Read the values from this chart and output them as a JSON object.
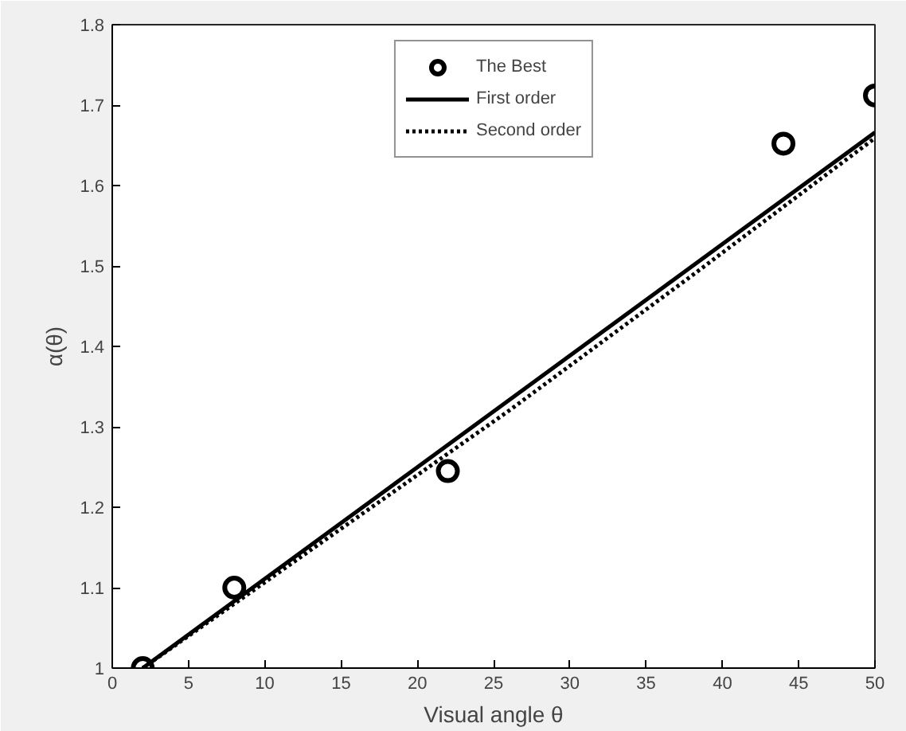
{
  "chart_data": {
    "type": "scatter",
    "xlabel": "Visual angle θ",
    "ylabel": "α(θ)",
    "xlim": [
      0,
      50
    ],
    "ylim": [
      1,
      1.8
    ],
    "xticks": [
      0,
      5,
      10,
      15,
      20,
      25,
      30,
      35,
      40,
      45,
      50
    ],
    "yticks": [
      1,
      1.1,
      1.2,
      1.3,
      1.4,
      1.5,
      1.6,
      1.7,
      1.8
    ],
    "grid": false,
    "legend": "top",
    "series": [
      {
        "name": "The Best",
        "marker": "circle",
        "color": "#000000",
        "x": [
          2,
          8,
          22,
          44,
          50
        ],
        "values": [
          1.0,
          1.1,
          1.245,
          1.652,
          1.712
        ]
      },
      {
        "name": "First order",
        "type": "line",
        "line_style": "solid",
        "color": "#000000",
        "x": [
          2,
          50
        ],
        "values": [
          1.0,
          1.666
        ]
      },
      {
        "name": "Second order",
        "type": "line",
        "line_style": "dotted",
        "color": "#000000",
        "x": [
          2,
          14,
          26,
          38,
          50
        ],
        "values": [
          1.0,
          1.16,
          1.32,
          1.488,
          1.659
        ]
      }
    ]
  }
}
